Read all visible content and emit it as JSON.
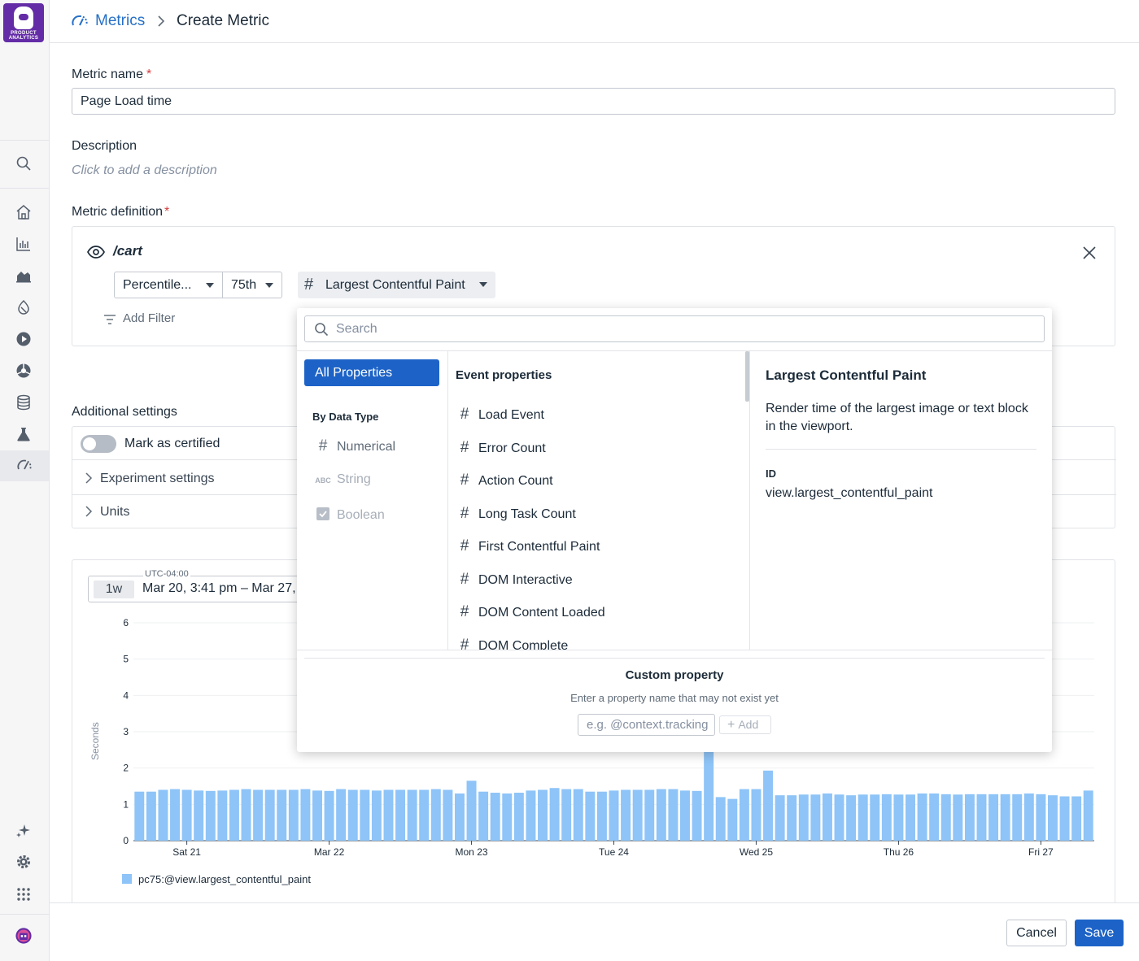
{
  "app": {
    "logo_lines": [
      "PRODUCT",
      "ANALYTICS"
    ],
    "rail_icons": [
      "search-icon",
      "home-icon",
      "bar-chart-icon",
      "area-chart-icon",
      "retention-icon",
      "play-icon",
      "segment-icon",
      "database-icon",
      "flask-icon",
      "metrics-icon",
      "sparkle-icon",
      "gear-icon",
      "apps-grid-icon",
      "avatar"
    ]
  },
  "breadcrumb": {
    "parent": "Metrics",
    "current": "Create Metric"
  },
  "form": {
    "name_label": "Metric name",
    "required_mark": "*",
    "name_value": "Page Load time",
    "description_label": "Description",
    "description_placeholder": "Click to add a description",
    "definition_label": "Metric definition",
    "view": "/cart",
    "aggregation": "Percentile...",
    "percentile": "75th",
    "property": "Largest Contentful Paint",
    "add_filter": "Add Filter",
    "additional_settings_label": "Additional settings",
    "mark_certified": "Mark as certified",
    "mark_certified_on": false,
    "experiment_settings": "Experiment settings",
    "units": "Units"
  },
  "dropdown": {
    "search_placeholder": "Search",
    "all_properties": "All Properties",
    "by_data_type": "By Data Type",
    "data_types": [
      {
        "label": "Numerical",
        "icon": "#",
        "enabled": true
      },
      {
        "label": "String",
        "icon": "ABC",
        "enabled": false
      },
      {
        "label": "Boolean",
        "icon": "checkbox-icon",
        "enabled": false
      }
    ],
    "event_properties_header": "Event properties",
    "event_properties": [
      "Load Event",
      "Error Count",
      "Action Count",
      "Long Task Count",
      "First Contentful Paint",
      "DOM Interactive",
      "DOM Content Loaded",
      "DOM Complete"
    ],
    "detail": {
      "title": "Largest Contentful Paint",
      "description": "Render time of the largest image or text block in the viewport.",
      "id_label": "ID",
      "id_value": "view.largest_contentful_paint"
    },
    "custom_property": {
      "title": "Custom property",
      "subtitle": "Enter a property name that may not exist yet",
      "placeholder": "e.g. @context.tracking",
      "add_label": "Add"
    }
  },
  "time": {
    "timezone": "UTC-04:00",
    "preset": "1w",
    "range": "Mar 20, 3:41 pm – Mar 27,"
  },
  "chart_data": {
    "type": "bar",
    "ylabel": "Seconds",
    "ylim": [
      0,
      6
    ],
    "yticks": [
      0,
      1,
      2,
      3,
      4,
      5,
      6
    ],
    "x_tick_labels": [
      "Sat 21",
      "Mar 22",
      "Mon 23",
      "Tue 24",
      "Wed 25",
      "Thu 26",
      "Fri 27"
    ],
    "grid": true,
    "legend_position": "bottom-left",
    "series": [
      {
        "name": "pc75:@view.largest_contentful_paint",
        "color": "#8ec4f7",
        "values": [
          1.35,
          1.35,
          1.4,
          1.42,
          1.4,
          1.38,
          1.37,
          1.38,
          1.4,
          1.42,
          1.4,
          1.4,
          1.4,
          1.4,
          1.42,
          1.38,
          1.37,
          1.42,
          1.4,
          1.4,
          1.38,
          1.4,
          1.4,
          1.4,
          1.4,
          1.42,
          1.4,
          1.3,
          1.65,
          1.35,
          1.32,
          1.3,
          1.32,
          1.38,
          1.4,
          1.45,
          1.42,
          1.42,
          1.35,
          1.35,
          1.38,
          1.4,
          1.4,
          1.4,
          1.42,
          1.42,
          1.38,
          1.37,
          2.45,
          1.2,
          1.15,
          1.42,
          1.42,
          1.93,
          1.25,
          1.25,
          1.27,
          1.27,
          1.3,
          1.27,
          1.25,
          1.27,
          1.27,
          1.28,
          1.27,
          1.27,
          1.3,
          1.3,
          1.28,
          1.27,
          1.28,
          1.28,
          1.28,
          1.28,
          1.28,
          1.3,
          1.28,
          1.25,
          1.22,
          1.22,
          1.38
        ]
      }
    ]
  },
  "footer": {
    "cancel": "Cancel",
    "save": "Save"
  }
}
